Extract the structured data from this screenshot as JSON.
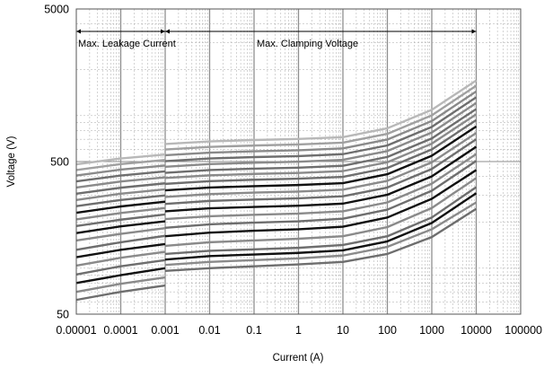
{
  "chart_data": {
    "type": "line",
    "title": "",
    "xlabel": "Current (A)",
    "ylabel": "Voltage (V)",
    "x_scale": "log",
    "y_scale": "log",
    "xlim": [
      1e-05,
      100000
    ],
    "ylim": [
      50,
      5000
    ],
    "x_tick_labels": [
      "0.00001",
      "0.0001",
      "0.001",
      "0.01",
      "0.1",
      "1",
      "10",
      "100",
      "1000",
      "10000",
      "100000"
    ],
    "y_tick_labels": [
      "50",
      "500",
      "5000"
    ],
    "grid": true,
    "annotations": [
      {
        "text": "Max. Leakage Current",
        "x_range": [
          1e-05,
          0.001
        ]
      },
      {
        "text": "Max. Clamping Voltage",
        "x_range": [
          0.001,
          10000
        ]
      }
    ],
    "leakage_x": [
      1e-05,
      0.0001,
      0.001
    ],
    "clamping_x": [
      0.001,
      0.01,
      0.1,
      1,
      10,
      100,
      1000,
      10000
    ],
    "series": [
      {
        "leakage": [
          62,
          70,
          77
        ],
        "clamping": [
          96,
          100,
          103,
          106,
          110,
          124,
          160,
          245
        ],
        "color": "#6e6e6e"
      },
      {
        "leakage": [
          70,
          79,
          87
        ],
        "clamping": [
          105,
          110,
          113,
          116,
          121,
          138,
          180,
          270
        ],
        "color": "#8a8a8a"
      },
      {
        "leakage": [
          80,
          90,
          100
        ],
        "clamping": [
          114,
          120,
          123,
          126,
          131,
          150,
          198,
          310
        ],
        "color": "#111111"
      },
      {
        "leakage": [
          91,
          103,
          113
        ],
        "clamping": [
          124,
          130,
          133,
          136,
          142,
          162,
          215,
          340
        ],
        "color": "#6e6e6e"
      },
      {
        "leakage": [
          104,
          117,
          128
        ],
        "clamping": [
          140,
          148,
          152,
          156,
          162,
          186,
          248,
          390
        ],
        "color": "#8a8a8a"
      },
      {
        "leakage": [
          118,
          132,
          144
        ],
        "clamping": [
          162,
          171,
          176,
          180,
          187,
          215,
          285,
          440
        ],
        "color": "#111111"
      },
      {
        "leakage": [
          132,
          148,
          163
        ],
        "clamping": [
          184,
          194,
          199,
          203,
          211,
          242,
          322,
          505
        ],
        "color": "#6e6e6e"
      },
      {
        "leakage": [
          152,
          168,
          183
        ],
        "clamping": [
          210,
          219,
          224,
          228,
          236,
          270,
          358,
          560
        ],
        "color": "#8a8a8a"
      },
      {
        "leakage": [
          170,
          188,
          203
        ],
        "clamping": [
          236,
          247,
          252,
          257,
          265,
          303,
          400,
          625
        ],
        "color": "#111111"
      },
      {
        "leakage": [
          189,
          208,
          225
        ],
        "clamping": [
          264,
          276,
          282,
          287,
          296,
          338,
          447,
          700
        ],
        "color": "#6e6e6e"
      },
      {
        "leakage": [
          209,
          230,
          248
        ],
        "clamping": [
          293,
          306,
          313,
          318,
          327,
          374,
          494,
          770
        ],
        "color": "#8a8a8a"
      },
      {
        "leakage": [
          231,
          254,
          273
        ],
        "clamping": [
          324,
          338,
          345,
          351,
          361,
          413,
          546,
          850
        ],
        "color": "#111111"
      },
      {
        "leakage": [
          255,
          280,
          300
        ],
        "clamping": [
          357,
          372,
          380,
          386,
          397,
          454,
          600,
          935
        ],
        "color": "#6e6e6e"
      },
      {
        "leakage": [
          280,
          308,
          329
        ],
        "clamping": [
          390,
          406,
          415,
          421,
          433,
          495,
          655,
          1020
        ],
        "color": "#8a8a8a"
      },
      {
        "leakage": [
          308,
          337,
          360
        ],
        "clamping": [
          422,
          440,
          449,
          456,
          469,
          536,
          709,
          1105
        ],
        "color": "#6e6e6e"
      },
      {
        "leakage": [
          338,
          370,
          394
        ],
        "clamping": [
          462,
          481,
          491,
          499,
          513,
          586,
          775,
          1210
        ],
        "color": "#8a8a8a"
      },
      {
        "leakage": [
          371,
          405,
          431
        ],
        "clamping": [
          503,
          524,
          535,
          543,
          559,
          638,
          844,
          1320
        ],
        "color": "#6e6e6e"
      },
      {
        "leakage": [
          405,
          443,
          471
        ],
        "clamping": [
          550,
          572,
          584,
          593,
          610,
          697,
          922,
          1440
        ],
        "color": "#8a8a8a"
      },
      {
        "leakage": [
          440,
          481,
          512
        ],
        "clamping": [
          600,
          624,
          637,
          647,
          665,
          760,
          1005,
          1570
        ],
        "color": "#a0a0a0"
      },
      {
        "leakage": [
          480,
          524,
          556
        ],
        "clamping": [
          652,
          678,
          692,
          703,
          723,
          826,
          1092,
          1700
        ],
        "color": "#b8b8b8"
      }
    ]
  }
}
